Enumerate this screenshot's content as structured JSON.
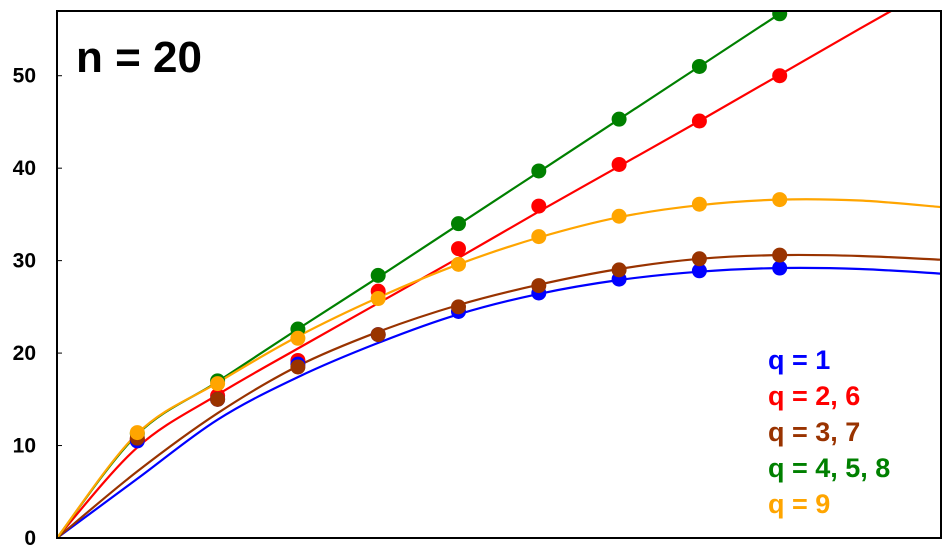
{
  "chart_data": {
    "type": "line",
    "annotation": "n = 20",
    "title": "",
    "xlabel": "",
    "ylabel": "",
    "ylim": [
      0,
      57
    ],
    "yticks": [
      "0",
      "10",
      "20",
      "30",
      "40",
      "50"
    ],
    "ytick_values": [
      0,
      10,
      20,
      30,
      40,
      50
    ],
    "x_range": [
      0,
      11
    ],
    "x_ticks_shown": false,
    "grid": false,
    "legend_position": "bottom-right",
    "series": [
      {
        "name": "q = 1",
        "color": "#0000ff",
        "points": [
          [
            1,
            10.5
          ],
          [
            2,
            15
          ],
          [
            3,
            18.8
          ],
          [
            4,
            22
          ],
          [
            5,
            24.5
          ],
          [
            6,
            26.5
          ],
          [
            7,
            28
          ],
          [
            8,
            28.9
          ],
          [
            9,
            29.2
          ]
        ],
        "curve": [
          [
            0,
            0
          ],
          [
            1,
            6.4
          ],
          [
            2,
            12.8
          ],
          [
            3,
            17.4
          ],
          [
            4,
            21.1
          ],
          [
            5,
            24.2
          ],
          [
            6,
            26.4
          ],
          [
            7,
            27.9
          ],
          [
            8,
            28.8
          ],
          [
            9,
            29.2
          ],
          [
            10,
            29.1
          ],
          [
            11,
            28.6
          ]
        ]
      },
      {
        "name": "q = 2, 6",
        "color": "#ff0000",
        "points": [
          [
            1,
            10.7
          ],
          [
            2,
            15.4
          ],
          [
            3,
            19.2
          ],
          [
            4,
            26.7
          ],
          [
            5,
            31.3
          ],
          [
            6,
            35.9
          ],
          [
            7,
            40.4
          ],
          [
            8,
            45.1
          ],
          [
            9,
            50
          ]
        ],
        "curve": [
          [
            0,
            0
          ],
          [
            1,
            9.8
          ],
          [
            2,
            15.5
          ],
          [
            3,
            20.5
          ],
          [
            4,
            25.4
          ],
          [
            5,
            30.3
          ],
          [
            6,
            35.3
          ],
          [
            7,
            40.2
          ],
          [
            8,
            45.1
          ],
          [
            9,
            50.1
          ],
          [
            10,
            55.1
          ],
          [
            11,
            60
          ]
        ]
      },
      {
        "name": "q = 3, 7",
        "color": "#993300",
        "points": [
          [
            1,
            10.8
          ],
          [
            2,
            15
          ],
          [
            3,
            18.5
          ],
          [
            4,
            22
          ],
          [
            5,
            25
          ],
          [
            6,
            27.3
          ],
          [
            7,
            29
          ],
          [
            8,
            30.2
          ],
          [
            9,
            30.6
          ]
        ],
        "curve": [
          [
            0,
            0
          ],
          [
            1,
            7.2
          ],
          [
            2,
            13.5
          ],
          [
            3,
            18.6
          ],
          [
            4,
            22.3
          ],
          [
            5,
            25.2
          ],
          [
            6,
            27.4
          ],
          [
            7,
            29.1
          ],
          [
            8,
            30.2
          ],
          [
            9,
            30.6
          ],
          [
            10,
            30.5
          ],
          [
            11,
            30.1
          ]
        ]
      },
      {
        "name": "q = 4, 5, 8",
        "color": "#008000",
        "points": [
          [
            1,
            11.3
          ],
          [
            2,
            17
          ],
          [
            3,
            22.6
          ],
          [
            4,
            28.4
          ],
          [
            5,
            34
          ],
          [
            6,
            39.7
          ],
          [
            7,
            45.3
          ],
          [
            8,
            51
          ],
          [
            9,
            56.7
          ]
        ],
        "curve": [
          [
            0,
            0
          ],
          [
            1,
            11.2
          ],
          [
            2,
            16.9
          ],
          [
            3,
            22.6
          ],
          [
            4,
            28.2
          ],
          [
            5,
            33.9
          ],
          [
            6,
            39.6
          ],
          [
            7,
            45.3
          ],
          [
            8,
            51
          ],
          [
            9,
            56.7
          ],
          [
            10,
            62.4
          ],
          [
            11,
            68
          ]
        ]
      },
      {
        "name": "q = 9",
        "color": "#ffa500",
        "points": [
          [
            1,
            11.4
          ],
          [
            2,
            16.7
          ],
          [
            3,
            21.6
          ],
          [
            4,
            25.9
          ],
          [
            5,
            29.6
          ],
          [
            6,
            32.6
          ],
          [
            7,
            34.8
          ],
          [
            8,
            36.1
          ],
          [
            9,
            36.6
          ]
        ],
        "curve": [
          [
            0,
            0
          ],
          [
            1,
            11.3
          ],
          [
            2,
            16.8
          ],
          [
            3,
            21.8
          ],
          [
            4,
            26
          ],
          [
            5,
            29.6
          ],
          [
            6,
            32.5
          ],
          [
            7,
            34.7
          ],
          [
            8,
            36
          ],
          [
            9,
            36.6
          ],
          [
            10,
            36.5
          ],
          [
            11,
            35.8
          ]
        ]
      }
    ]
  }
}
